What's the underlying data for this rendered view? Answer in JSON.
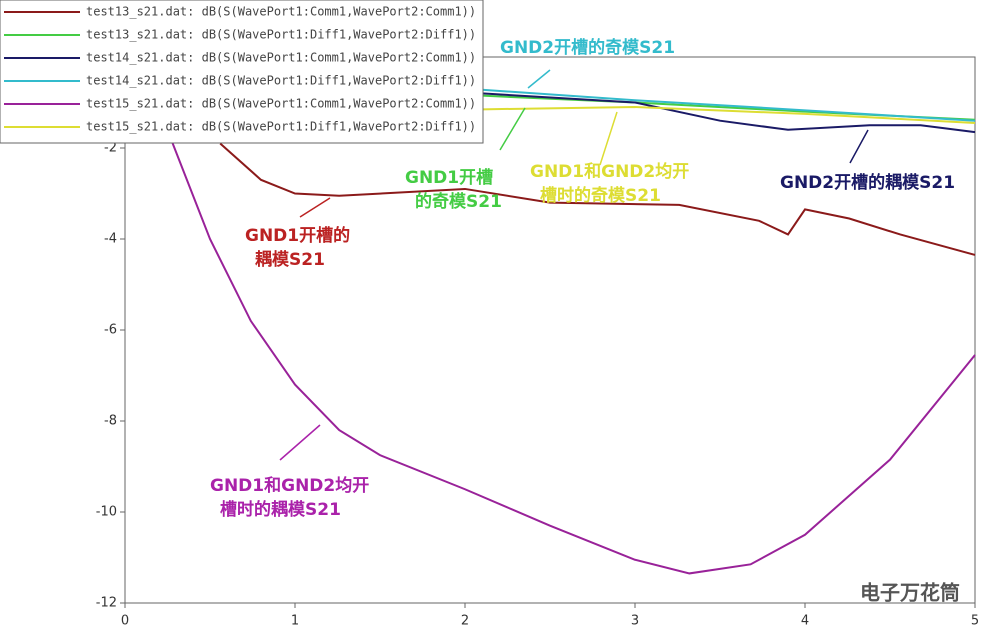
{
  "chart_data": {
    "type": "line",
    "xlim": [
      0,
      5
    ],
    "xticks": [
      0,
      1,
      2,
      3,
      4,
      5
    ],
    "ylim": [
      -12,
      0
    ],
    "yticks": [
      -12,
      -10,
      -8,
      -6,
      -4,
      -2
    ],
    "series": [
      {
        "name": "test13_s21.dat: dB(S(WavePort1:Comm1,WavePort2:Comm1))",
        "color": "#8b1a1a",
        "x": [
          0.56,
          0.8,
          1,
          1.26,
          2,
          2.5,
          3.26,
          3.73,
          3.9,
          4,
          4.26,
          4.56,
          5
        ],
        "values": [
          -1.9,
          -2.7,
          -3.0,
          -3.05,
          -2.9,
          -3.2,
          -3.25,
          -3.6,
          -3.9,
          -3.35,
          -3.55,
          -3.9,
          -4.35
        ]
      },
      {
        "name": "test13_s21.dat: dB(S(WavePort1:Diff1,WavePort2:Diff1))",
        "color": "#44cc44",
        "x": [
          2.1,
          3,
          4,
          5
        ],
        "values": [
          -0.85,
          -1.0,
          -1.2,
          -1.38
        ]
      },
      {
        "name": "test14_s21.dat: dB(S(WavePort1:Comm1,WavePort2:Comm1))",
        "color": "#1a1a66",
        "x": [
          2.1,
          3,
          3.5,
          3.9,
          4.38,
          4.68,
          5
        ],
        "values": [
          -0.8,
          -1.0,
          -1.4,
          -1.6,
          -1.5,
          -1.5,
          -1.65
        ]
      },
      {
        "name": "test14_s21.dat: dB(S(WavePort1:Diff1,WavePort2:Diff1))",
        "color": "#33bbcc",
        "x": [
          2.1,
          3,
          3.68,
          5
        ],
        "values": [
          -0.72,
          -0.95,
          -1.1,
          -1.4
        ]
      },
      {
        "name": "test15_s21.dat: dB(S(WavePort1:Comm1,WavePort2:Comm1))",
        "color": "#992299",
        "x": [
          0.27,
          0.5,
          0.74,
          1,
          1.26,
          1.5,
          2,
          2.5,
          3,
          3.32,
          3.68,
          4,
          4.5,
          5
        ],
        "values": [
          -1.8,
          -4.0,
          -5.8,
          -7.2,
          -8.2,
          -8.75,
          -9.5,
          -10.3,
          -11.05,
          -11.35,
          -11.15,
          -10.5,
          -8.85,
          -6.55
        ]
      },
      {
        "name": "test15_s21.dat: dB(S(WavePort1:Diff1,WavePort2:Diff1))",
        "color": "#dddd33",
        "x": [
          2.1,
          3,
          4,
          5
        ],
        "values": [
          -1.15,
          -1.1,
          -1.25,
          -1.45
        ]
      }
    ],
    "annotations": [
      {
        "lines": [
          "GND2开槽的奇模S21"
        ],
        "color": "#33bbcc"
      },
      {
        "lines": [
          "GND1开槽",
          "的奇模S21"
        ],
        "color": "#44cc44"
      },
      {
        "lines": [
          "GND1和GND2均开",
          "槽时的奇模S21"
        ],
        "color": "#dddd33"
      },
      {
        "lines": [
          "GND2开槽的耦模S21"
        ],
        "color": "#1a1a66"
      },
      {
        "lines": [
          "GND1开槽的",
          "耦模S21"
        ],
        "color": "#bb2222"
      },
      {
        "lines": [
          "GND1和GND2均开",
          "槽时的耦模S21"
        ],
        "color": "#aa22aa"
      }
    ],
    "watermark": "电子万花筒"
  }
}
